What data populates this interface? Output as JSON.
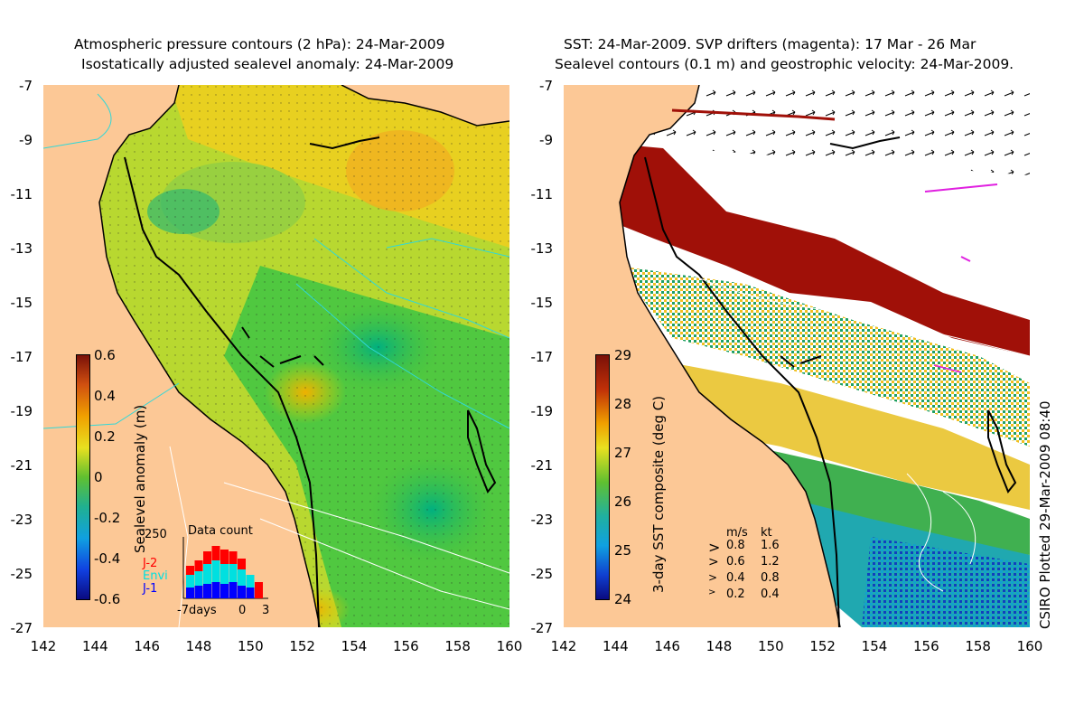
{
  "left_panel": {
    "title_line1": "Atmospheric pressure contours (2 hPa): 24-Mar-2009",
    "title_line2": "Isostatically adjusted sealevel anomaly: 24-Mar-2009",
    "colorbar": {
      "label": "Sealevel anomaly (m)",
      "ticks": [
        "0.6",
        "0.4",
        "0.2",
        "0",
        "-0.2",
        "-0.4",
        "-0.6"
      ]
    },
    "data_count": {
      "title": "Data count",
      "max_label": "250",
      "missions": [
        {
          "name": "J-2",
          "color": "#ff0000"
        },
        {
          "name": "Envi",
          "color": "#00e0e0"
        },
        {
          "name": "J-1",
          "color": "#0000ff"
        }
      ],
      "x_labels": [
        "-7days",
        "0",
        "3"
      ]
    }
  },
  "right_panel": {
    "title_line1": "SST: 24-Mar-2009. SVP drifters (magenta): 17 Mar - 26 Mar",
    "title_line2": "Sealevel contours (0.1 m) and geostrophic velocity: 24-Mar-2009.",
    "colorbar": {
      "label": "3-day SST composite (deg C)",
      "ticks": [
        "29",
        "28",
        "27",
        "26",
        "25",
        "24"
      ]
    },
    "velocity_legend": {
      "header_ms": "m/s",
      "header_kt": "kt",
      "rows": [
        {
          "ms": "0.8",
          "kt": "1.6"
        },
        {
          "ms": "0.6",
          "kt": "1.2"
        },
        {
          "ms": "0.4",
          "kt": "0.8"
        },
        {
          "ms": "0.2",
          "kt": "0.4"
        }
      ]
    }
  },
  "axes": {
    "x_ticks": [
      "142",
      "144",
      "146",
      "148",
      "150",
      "152",
      "154",
      "156",
      "158",
      "160"
    ],
    "y_ticks": [
      "-7",
      "-9",
      "-11",
      "-13",
      "-15",
      "-17",
      "-19",
      "-21",
      "-23",
      "-25",
      "-27"
    ]
  },
  "credit": "CSIRO Plotted 29-Mar-2009 08:40",
  "colors": {
    "land": "#fcc896",
    "sst_cold": "#1030c0",
    "sst_warm": "#a01008",
    "sla_high": "#e8c000",
    "sla_low": "#00a080"
  }
}
